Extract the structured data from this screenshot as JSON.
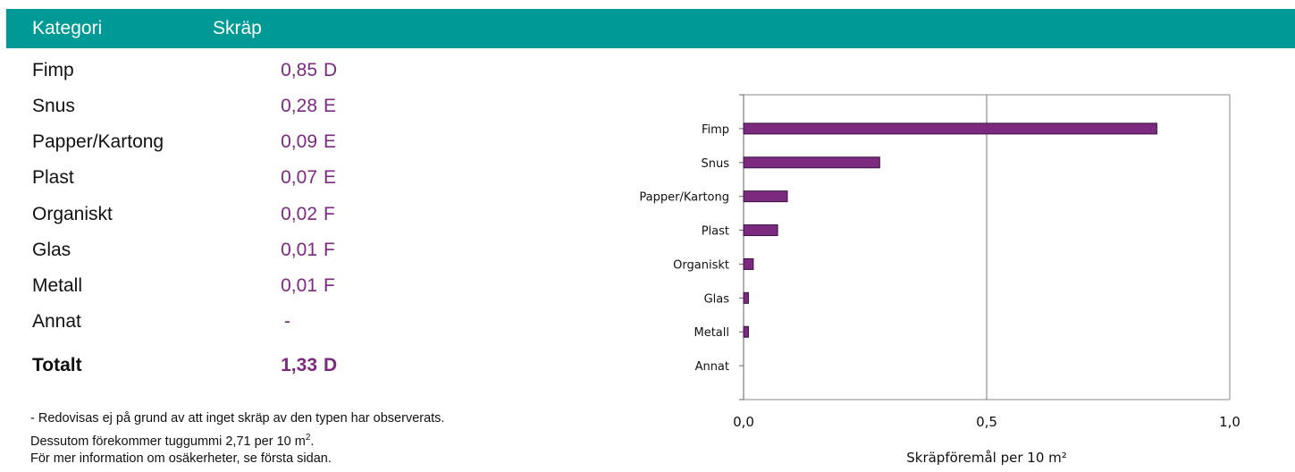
{
  "header": {
    "col_category": "Kategori",
    "col_litter": "Skräp",
    "color": "#009a96"
  },
  "table": {
    "rows": [
      {
        "category": "Fimp",
        "value": "0,85",
        "grade": "D"
      },
      {
        "category": "Snus",
        "value": "0,28",
        "grade": "E"
      },
      {
        "category": "Papper/Kartong",
        "value": "0,09",
        "grade": "E"
      },
      {
        "category": "Plast",
        "value": "0,07",
        "grade": "E"
      },
      {
        "category": "Organiskt",
        "value": "0,02",
        "grade": "F"
      },
      {
        "category": "Glas",
        "value": "0,01",
        "grade": "F"
      },
      {
        "category": "Metall",
        "value": "0,01",
        "grade": "F"
      },
      {
        "category": "Annat",
        "value": "-",
        "grade": ""
      }
    ],
    "total": {
      "category": "Totalt",
      "value": "1,33",
      "grade": "D"
    },
    "value_color": "#7b2a80"
  },
  "footnotes": {
    "line1": "- Redovisas ej på grund av att inget skräp av den typen har observerats.",
    "line2_prefix": "Dessutom förekommer tuggummi  2,71 per 10 m",
    "line2_sup": "2",
    "line2_suffix": ".",
    "line3": "För mer information om osäkerheter, se första sidan."
  },
  "chart_data": {
    "type": "bar",
    "orientation": "horizontal",
    "categories": [
      "Fimp",
      "Snus",
      "Papper/Kartong",
      "Plast",
      "Organiskt",
      "Glas",
      "Metall",
      "Annat"
    ],
    "values": [
      0.85,
      0.28,
      0.09,
      0.07,
      0.02,
      0.01,
      0.01,
      0
    ],
    "xlim": [
      0,
      1.0
    ],
    "xticks": [
      "0,0",
      "0,5",
      "1,0"
    ],
    "xtick_values": [
      0,
      0.5,
      1.0
    ],
    "xlabel": "Skräpföremål per 10 m²",
    "ylabel": "",
    "title": "",
    "grid": "vertical",
    "bar_color": "#7b2a80"
  }
}
